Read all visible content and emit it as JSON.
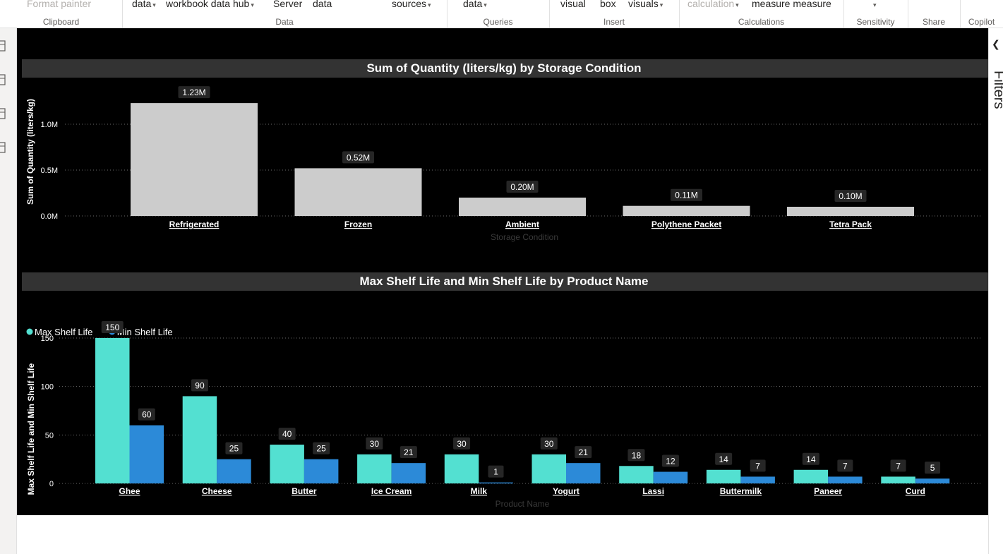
{
  "ribbon": {
    "groups": [
      {
        "label": "Clipboard",
        "buttons": [
          {
            "text": "Format painter",
            "disabled": true,
            "caret": false
          }
        ]
      },
      {
        "label": "Data",
        "buttons": [
          {
            "text": "data",
            "caret": true
          },
          {
            "text": "workbook data hub",
            "caret": true
          },
          {
            "text": "Server",
            "caret": false
          },
          {
            "text": "data",
            "caret": false
          },
          {
            "text": "sources",
            "caret": true
          }
        ]
      },
      {
        "label": "Queries",
        "buttons": [
          {
            "text": "data",
            "caret": true
          }
        ]
      },
      {
        "label": "Insert",
        "buttons": [
          {
            "text": "visual",
            "caret": false
          },
          {
            "text": "box",
            "caret": false
          },
          {
            "text": "visuals",
            "caret": true
          }
        ]
      },
      {
        "label": "Calculations",
        "buttons": [
          {
            "text": "calculation",
            "disabled": true,
            "caret": true
          },
          {
            "text": "measure measure",
            "caret": false
          }
        ]
      },
      {
        "label": "Sensitivity",
        "buttons": [
          {
            "text": "",
            "caret": true
          }
        ]
      },
      {
        "label": "Share",
        "buttons": []
      },
      {
        "label": "Copilot",
        "buttons": []
      }
    ]
  },
  "left_nav": {
    "icons": [
      "report-view-icon",
      "table-view-icon",
      "model-view-icon",
      "dax-query-icon"
    ]
  },
  "filters_pane": {
    "label": "Filters",
    "collapse_icon": "chevron-left-icon"
  },
  "colors": {
    "page_bg": "#000000",
    "title_bar": "#333333",
    "bar_grey": "#cccccc",
    "series_max": "#53e0d1",
    "series_min": "#2c8ad8",
    "axis_text": "#ffffff",
    "axis_title_muted": "#3a3a3a"
  },
  "chart_data": [
    {
      "type": "bar",
      "title": "Sum of Quantity (liters/kg) by Storage Condition",
      "xlabel": "Storage Condition",
      "ylabel": "Sum of Quantity (liters/kg)",
      "categories": [
        "Refrigerated",
        "Frozen",
        "Ambient",
        "Polythene Packet",
        "Tetra Pack"
      ],
      "values": [
        1230000,
        520000,
        200000,
        110000,
        100000
      ],
      "data_labels": [
        "1.23M",
        "0.52M",
        "0.20M",
        "0.11M",
        "0.10M"
      ],
      "yticks": [
        0,
        500000,
        1000000
      ],
      "ytick_labels": [
        "0.0M",
        "0.5M",
        "1.0M"
      ],
      "ylim": [
        0,
        1230000
      ],
      "grid": true
    },
    {
      "type": "bar",
      "title": "Max Shelf Life and Min Shelf Life by Product Name",
      "xlabel": "Product Name",
      "ylabel": "Max Shelf Life and Min Shelf Life",
      "categories": [
        "Ghee",
        "Cheese",
        "Butter",
        "Ice Cream",
        "Milk",
        "Yogurt",
        "Lassi",
        "Buttermilk",
        "Paneer",
        "Curd"
      ],
      "series": [
        {
          "name": "Max Shelf Life",
          "values": [
            150,
            90,
            40,
            30,
            30,
            30,
            18,
            14,
            14,
            7
          ]
        },
        {
          "name": "Min Shelf Life",
          "values": [
            60,
            25,
            25,
            21,
            1,
            21,
            12,
            7,
            7,
            5
          ]
        }
      ],
      "yticks": [
        0,
        50,
        100,
        150
      ],
      "ylim": [
        0,
        150
      ],
      "legend": "top-left",
      "grid": true
    }
  ]
}
